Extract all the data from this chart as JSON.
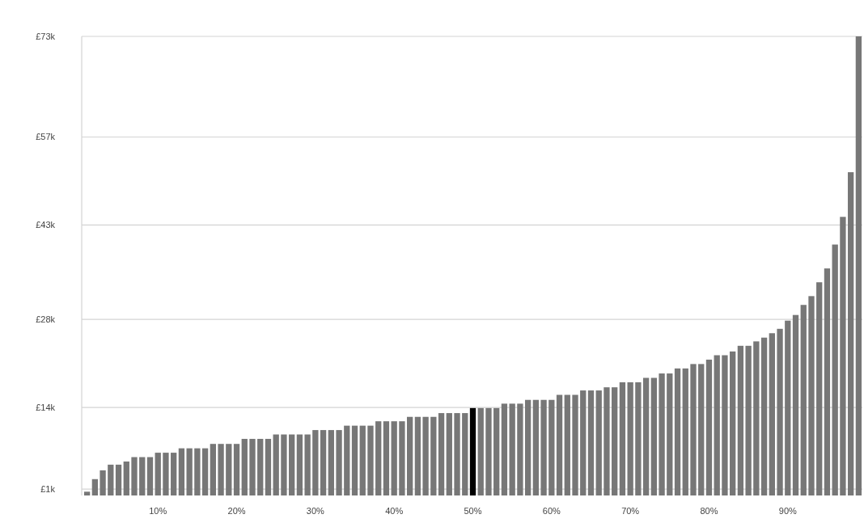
{
  "chart_data": {
    "type": "bar",
    "categories": [
      null,
      null,
      null,
      null,
      null,
      null,
      null,
      null,
      null,
      "10%",
      null,
      null,
      null,
      null,
      null,
      null,
      null,
      null,
      null,
      "20%",
      null,
      null,
      null,
      null,
      null,
      null,
      null,
      null,
      null,
      "30%",
      null,
      null,
      null,
      null,
      null,
      null,
      null,
      null,
      null,
      "40%",
      null,
      null,
      null,
      null,
      null,
      null,
      null,
      null,
      null,
      "50%",
      null,
      null,
      null,
      null,
      null,
      null,
      null,
      null,
      null,
      "60%",
      null,
      null,
      null,
      null,
      null,
      null,
      null,
      null,
      null,
      "70%",
      null,
      null,
      null,
      null,
      null,
      null,
      null,
      null,
      null,
      "80%",
      null,
      null,
      null,
      null,
      null,
      null,
      null,
      null,
      null,
      "90%",
      null,
      null,
      null,
      null,
      null,
      null,
      null,
      null,
      null
    ],
    "values": [
      0.6,
      2.6,
      4.0,
      4.9,
      4.9,
      5.4,
      6.1,
      6.1,
      6.1,
      6.8,
      6.8,
      6.8,
      7.5,
      7.5,
      7.5,
      7.5,
      8.2,
      8.2,
      8.2,
      8.2,
      9.0,
      9.0,
      9.0,
      9.0,
      9.7,
      9.7,
      9.7,
      9.7,
      9.7,
      10.4,
      10.4,
      10.4,
      10.4,
      11.1,
      11.1,
      11.1,
      11.1,
      11.8,
      11.8,
      11.8,
      11.8,
      12.5,
      12.5,
      12.5,
      12.5,
      13.1,
      13.1,
      13.1,
      13.1,
      13.9,
      13.9,
      13.9,
      13.9,
      14.6,
      14.6,
      14.6,
      15.2,
      15.2,
      15.2,
      15.2,
      16.0,
      16.0,
      16.0,
      16.7,
      16.7,
      16.7,
      17.2,
      17.2,
      18.0,
      18.0,
      18.0,
      18.7,
      18.7,
      19.4,
      19.4,
      20.2,
      20.2,
      20.9,
      20.9,
      21.6,
      22.3,
      22.3,
      22.9,
      23.8,
      23.8,
      24.5,
      25.1,
      25.8,
      26.5,
      27.8,
      28.7,
      30.3,
      31.7,
      33.9,
      36.1,
      39.9,
      44.3,
      51.4,
      73
    ],
    "colors": [
      "#777777",
      "#777777",
      "#777777",
      "#777777",
      "#777777",
      "#777777",
      "#777777",
      "#777777",
      "#777777",
      "#777777",
      "#777777",
      "#777777",
      "#777777",
      "#777777",
      "#777777",
      "#777777",
      "#777777",
      "#777777",
      "#777777",
      "#777777",
      "#777777",
      "#777777",
      "#777777",
      "#777777",
      "#777777",
      "#777777",
      "#777777",
      "#777777",
      "#777777",
      "#777777",
      "#777777",
      "#777777",
      "#777777",
      "#777777",
      "#777777",
      "#777777",
      "#777777",
      "#777777",
      "#777777",
      "#777777",
      "#777777",
      "#777777",
      "#777777",
      "#777777",
      "#777777",
      "#777777",
      "#777777",
      "#777777",
      "#777777",
      "#000000",
      "#777777",
      "#777777",
      "#777777",
      "#777777",
      "#777777",
      "#777777",
      "#777777",
      "#777777",
      "#777777",
      "#777777",
      "#777777",
      "#777777",
      "#777777",
      "#777777",
      "#777777",
      "#777777",
      "#777777",
      "#777777",
      "#777777",
      "#777777",
      "#777777",
      "#777777",
      "#777777",
      "#777777",
      "#777777",
      "#777777",
      "#777777",
      "#777777",
      "#777777",
      "#777777",
      "#777777",
      "#777777",
      "#777777",
      "#777777",
      "#777777",
      "#777777",
      "#777777",
      "#777777",
      "#777777",
      "#777777",
      "#777777",
      "#777777",
      "#777777",
      "#777777",
      "#777777",
      "#777777",
      "#777777",
      "#777777",
      "#777777"
    ],
    "ylim": [
      0,
      73
    ],
    "yticks": [
      {
        "value": 1,
        "label": "£1k"
      },
      {
        "value": 14,
        "label": "£14k"
      },
      {
        "value": 28,
        "label": "£28k"
      },
      {
        "value": 43,
        "label": "£43k"
      },
      {
        "value": 57,
        "label": "£57k"
      },
      {
        "value": 73,
        "label": "£73k"
      }
    ],
    "grid": "y"
  }
}
